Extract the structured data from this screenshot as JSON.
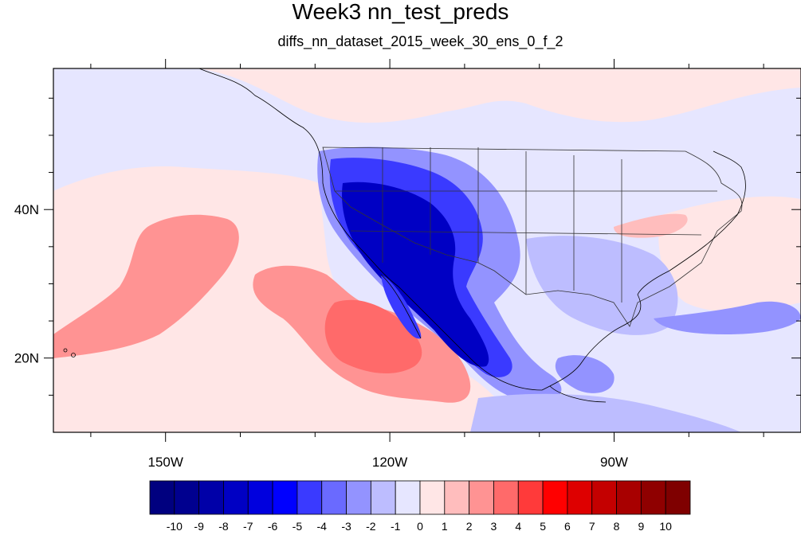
{
  "title": "Week3 nn_test_preds",
  "subtitle": "diffs_nn_dataset_2015_week_30_ens_0_f_2",
  "map": {
    "lon_range": [
      -165,
      -65
    ],
    "lat_range": [
      10,
      59
    ],
    "x_ticks": [
      {
        "lon": -150,
        "label": "150W"
      },
      {
        "lon": -120,
        "label": "120W"
      },
      {
        "lon": -90,
        "label": "90W"
      }
    ],
    "x_minor": [
      -160,
      -140,
      -130,
      -110,
      -100,
      -80,
      -70
    ],
    "y_ticks": [
      {
        "lat": 40,
        "label": "40N"
      },
      {
        "lat": 20,
        "label": "20N"
      }
    ],
    "y_minor": [
      15,
      25,
      30,
      35,
      45,
      50,
      55
    ]
  },
  "colorbar": {
    "labels": [
      "-10",
      "-9",
      "-8",
      "-7",
      "-6",
      "-5",
      "-4",
      "-3",
      "-2",
      "-1",
      "0",
      "1",
      "2",
      "3",
      "4",
      "5",
      "6",
      "7",
      "8",
      "9",
      "10"
    ],
    "colors": [
      "#00007f",
      "#00008f",
      "#0000a8",
      "#0000c4",
      "#0000de",
      "#0000ff",
      "#3a3aff",
      "#6a6aff",
      "#9393ff",
      "#bdbdff",
      "#e6e6ff",
      "#ffe6e6",
      "#ffbdbd",
      "#ff9393",
      "#ff6a6a",
      "#ff3a3a",
      "#ff0000",
      "#de0000",
      "#c40000",
      "#a80000",
      "#8f0000",
      "#7f0000"
    ]
  }
}
